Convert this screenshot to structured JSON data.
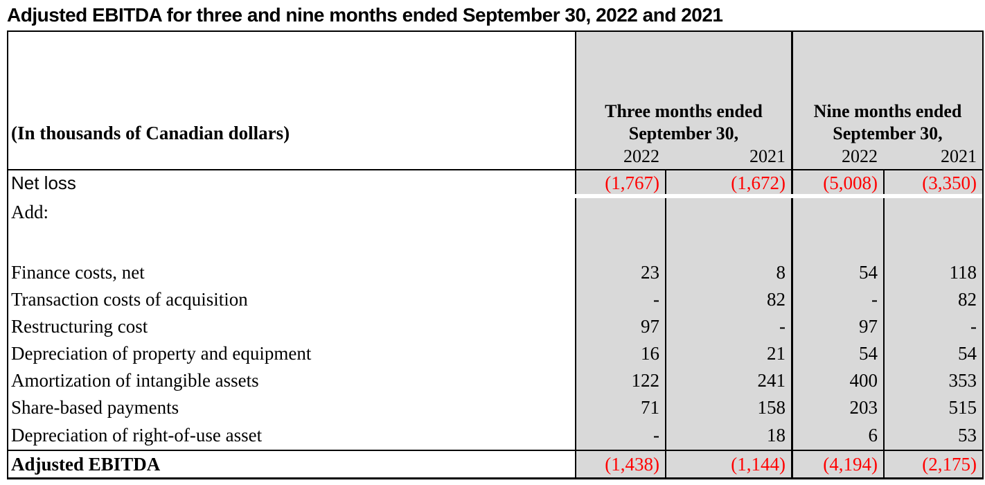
{
  "title": "Adjusted EBITDA for three and nine months ended September 30, 2022 and 2021",
  "table": {
    "corner_label": "(In thousands of Canadian dollars)",
    "groups": [
      {
        "title_line1": "Three months ended",
        "title_line2": "September 30,",
        "years": [
          "2022",
          "2021"
        ]
      },
      {
        "title_line1": "Nine months ended",
        "title_line2": "September 30,",
        "years": [
          "2022",
          "2021"
        ]
      }
    ],
    "rows": [
      {
        "label": "Net loss",
        "values": [
          "(1,767)",
          "(1,672)",
          "(5,008)",
          "(3,350)"
        ]
      },
      {
        "label": "Add:",
        "values": [
          "",
          "",
          "",
          ""
        ]
      },
      {
        "label": "",
        "values": [
          "",
          "",
          "",
          ""
        ]
      },
      {
        "label": "Finance costs, net",
        "values": [
          "23",
          "8",
          "54",
          "118"
        ]
      },
      {
        "label": "Transaction costs of acquisition",
        "values": [
          "-",
          "82",
          "-",
          "82"
        ]
      },
      {
        "label": "Restructuring cost",
        "values": [
          "97",
          "-",
          "97",
          "-"
        ]
      },
      {
        "label": "Depreciation of property and equipment",
        "values": [
          "16",
          "21",
          "54",
          "54"
        ]
      },
      {
        "label": "Amortization of intangible assets",
        "values": [
          "122",
          "241",
          "400",
          "353"
        ]
      },
      {
        "label": "Share-based payments",
        "values": [
          "71",
          "158",
          "203",
          "515"
        ]
      },
      {
        "label": "Depreciation of right-of-use asset",
        "values": [
          "-",
          "18",
          "6",
          "53"
        ]
      },
      {
        "label": "Adjusted EBITDA",
        "values": [
          "(1,438)",
          "(1,144)",
          "(4,194)",
          "(2,175)"
        ]
      }
    ],
    "colors": {
      "negative_value": "#ff0000",
      "column_shading": "#d9d9d9",
      "border": "#000000",
      "text": "#000000"
    }
  }
}
